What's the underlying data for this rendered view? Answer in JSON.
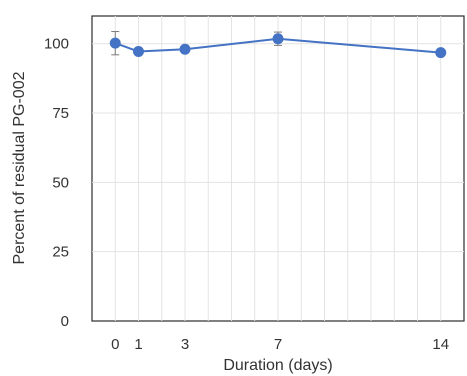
{
  "chart_data": {
    "type": "line",
    "xlabel": "Duration (days)",
    "ylabel": "Percent of residual PG-002",
    "xlim": [
      -1,
      15
    ],
    "ylim": [
      0,
      110
    ],
    "x_ticks": [
      0,
      1,
      3,
      7,
      14
    ],
    "y_ticks": [
      0,
      25,
      50,
      75,
      100
    ],
    "grid": true,
    "series": [
      {
        "x": [
          0,
          1,
          3,
          7,
          14
        ],
        "y": [
          100.2,
          97.2,
          98.0,
          101.8,
          96.8
        ],
        "error": [
          4.2,
          1.0,
          0.8,
          2.4,
          0.8
        ],
        "color": "#4472c4"
      }
    ]
  }
}
